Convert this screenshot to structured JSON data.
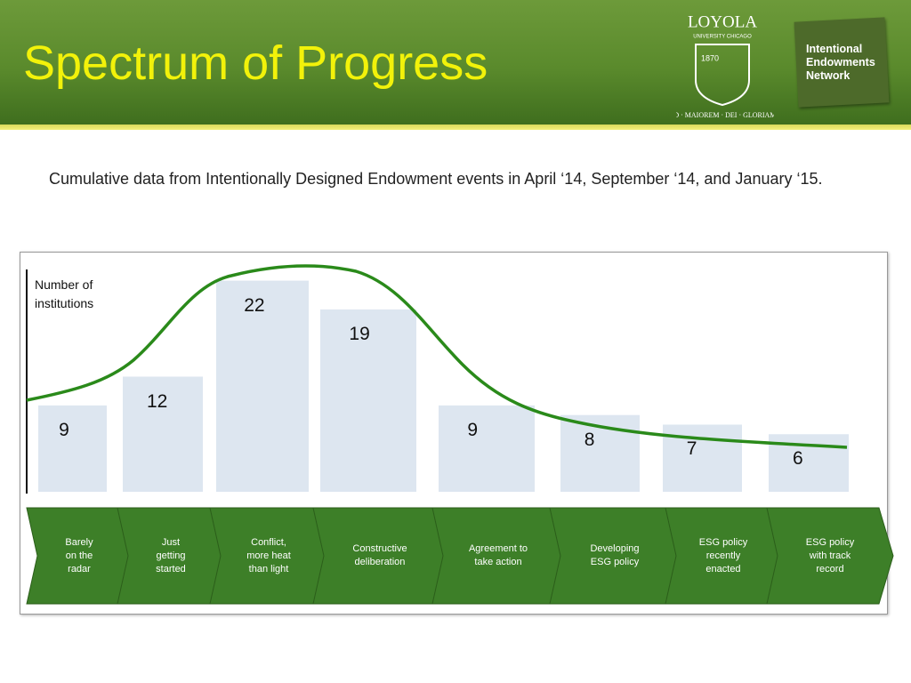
{
  "header": {
    "title": "Spectrum of Progress",
    "logo_university": "LOYOLA",
    "logo_subtitle": "UNIVERSITY CHICAGO",
    "logo_year": "1870",
    "logo_motto": "AD · MAIOREM · DEI · GLORIAM",
    "logo_network": "Intentional Endowments Network"
  },
  "subtitle": "Cumulative data from Intentionally Designed Endowment events in April ‘14, September ‘14, and January ‘15.",
  "chart_data": {
    "type": "bar",
    "y_label": "Number of institutions",
    "categories": [
      "Barely\non the\nradar",
      "Just\ngetting\nstarted",
      "Conflict,\nmore heat\nthan light",
      "Constructive\ndeliberation",
      "Agreement to\ntake action",
      "Developing\nESG policy",
      "ESG policy\nrecently\nenacted",
      "ESG policy\nwith track\nrecord"
    ],
    "values": [
      9,
      12,
      22,
      19,
      9,
      8,
      7,
      6
    ],
    "color": "#dde6f0",
    "ylim": [
      0,
      24
    ]
  }
}
